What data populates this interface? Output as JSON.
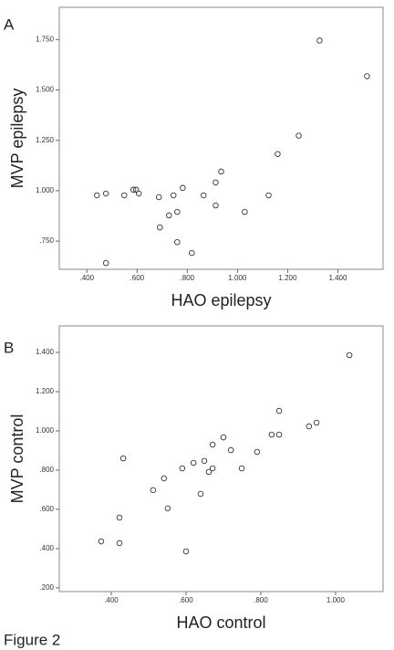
{
  "chart_data": [
    {
      "type": "scatter",
      "panel_label": "A",
      "x_label": "HAO epilepsy",
      "y_label": "MVP epilepsy",
      "x": [
        0.44,
        0.476,
        0.549,
        0.585,
        0.596,
        0.607,
        0.476,
        0.687,
        0.691,
        0.727,
        0.745,
        0.76,
        0.76,
        0.782,
        0.818,
        0.865,
        0.913,
        0.913,
        0.935,
        1.029,
        1.124,
        1.16,
        1.244,
        1.327,
        1.516
      ],
      "y": [
        0.977,
        0.986,
        0.977,
        1.005,
        1.005,
        0.986,
        0.641,
        0.968,
        0.818,
        0.877,
        0.977,
        0.895,
        0.745,
        1.014,
        0.691,
        0.977,
        1.041,
        0.927,
        1.095,
        0.895,
        0.977,
        1.182,
        1.273,
        1.745,
        1.568
      ],
      "xlim": [
        0.29,
        1.58
      ],
      "ylim": [
        0.61,
        1.91
      ],
      "xticks": [
        {
          "value": 0.4,
          "label": ".400"
        },
        {
          "value": 0.6,
          "label": ".600"
        },
        {
          "value": 0.8,
          "label": ".800"
        },
        {
          "value": 1.0,
          "label": "1.000"
        },
        {
          "value": 1.2,
          "label": "1.200"
        },
        {
          "value": 1.4,
          "label": "1.400"
        }
      ],
      "yticks": [
        {
          "value": 0.75,
          "label": ".750"
        },
        {
          "value": 1.0,
          "label": "1.000"
        },
        {
          "value": 1.25,
          "label": "1.250"
        },
        {
          "value": 1.5,
          "label": "1.500"
        },
        {
          "value": 1.75,
          "label": "1.750"
        }
      ]
    },
    {
      "type": "scatter",
      "panel_label": "B",
      "x_label": "HAO control",
      "y_label": "MVP control",
      "x": [
        0.373,
        0.422,
        0.422,
        0.432,
        0.512,
        0.541,
        0.551,
        0.59,
        0.6,
        0.62,
        0.639,
        0.649,
        0.661,
        0.671,
        0.671,
        0.7,
        0.72,
        0.749,
        0.79,
        0.829,
        0.849,
        0.849,
        0.929,
        0.949,
        1.037
      ],
      "y": [
        0.437,
        0.558,
        0.428,
        0.86,
        0.698,
        0.758,
        0.605,
        0.809,
        0.386,
        0.837,
        0.679,
        0.847,
        0.791,
        0.809,
        0.93,
        0.967,
        0.902,
        0.809,
        0.893,
        0.981,
        1.102,
        0.981,
        1.023,
        1.042,
        1.386
      ],
      "xlim": [
        0.261,
        1.127
      ],
      "ylim": [
        0.181,
        1.535
      ],
      "xticks": [
        {
          "value": 0.4,
          "label": ".400"
        },
        {
          "value": 0.6,
          "label": ".600"
        },
        {
          "value": 0.8,
          "label": ".800"
        },
        {
          "value": 1.0,
          "label": "1.000"
        }
      ],
      "yticks": [
        {
          "value": 0.2,
          "label": ".200"
        },
        {
          "value": 0.4,
          "label": ".400"
        },
        {
          "value": 0.6,
          "label": ".600"
        },
        {
          "value": 0.8,
          "label": ".800"
        },
        {
          "value": 1.0,
          "label": "1.000"
        },
        {
          "value": 1.2,
          "label": "1.200"
        },
        {
          "value": 1.4,
          "label": "1.400"
        }
      ]
    }
  ],
  "caption": "Figure 2"
}
